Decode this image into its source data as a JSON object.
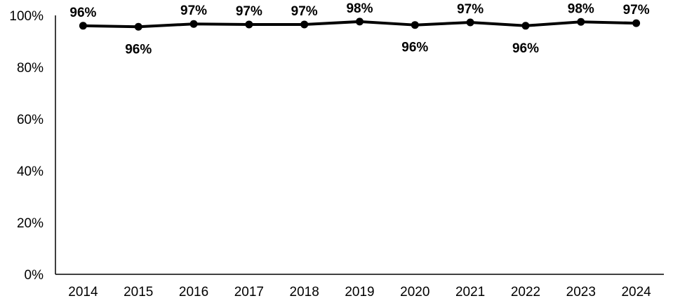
{
  "chart_data": {
    "type": "line",
    "title": "",
    "xlabel": "",
    "ylabel": "",
    "categories": [
      "2014",
      "2015",
      "2016",
      "2017",
      "2018",
      "2019",
      "2020",
      "2021",
      "2022",
      "2023",
      "2024"
    ],
    "series": [
      {
        "values": [
          96,
          95.6,
          96.7,
          96.5,
          96.5,
          97.6,
          96.3,
          97.3,
          96.0,
          97.5,
          97.0
        ],
        "labels": [
          "96%",
          "96%",
          "97%",
          "97%",
          "97%",
          "98%",
          "96%",
          "97%",
          "96%",
          "98%",
          "97%"
        ],
        "label_positions": [
          "above",
          "below",
          "above",
          "above",
          "above",
          "above",
          "below",
          "above",
          "below",
          "above",
          "above"
        ],
        "color": "#000000"
      }
    ],
    "y_ticks": [
      "0%",
      "20%",
      "40%",
      "60%",
      "80%",
      "100%"
    ],
    "ylim": [
      0,
      100
    ],
    "grid": false,
    "legend": "none"
  }
}
